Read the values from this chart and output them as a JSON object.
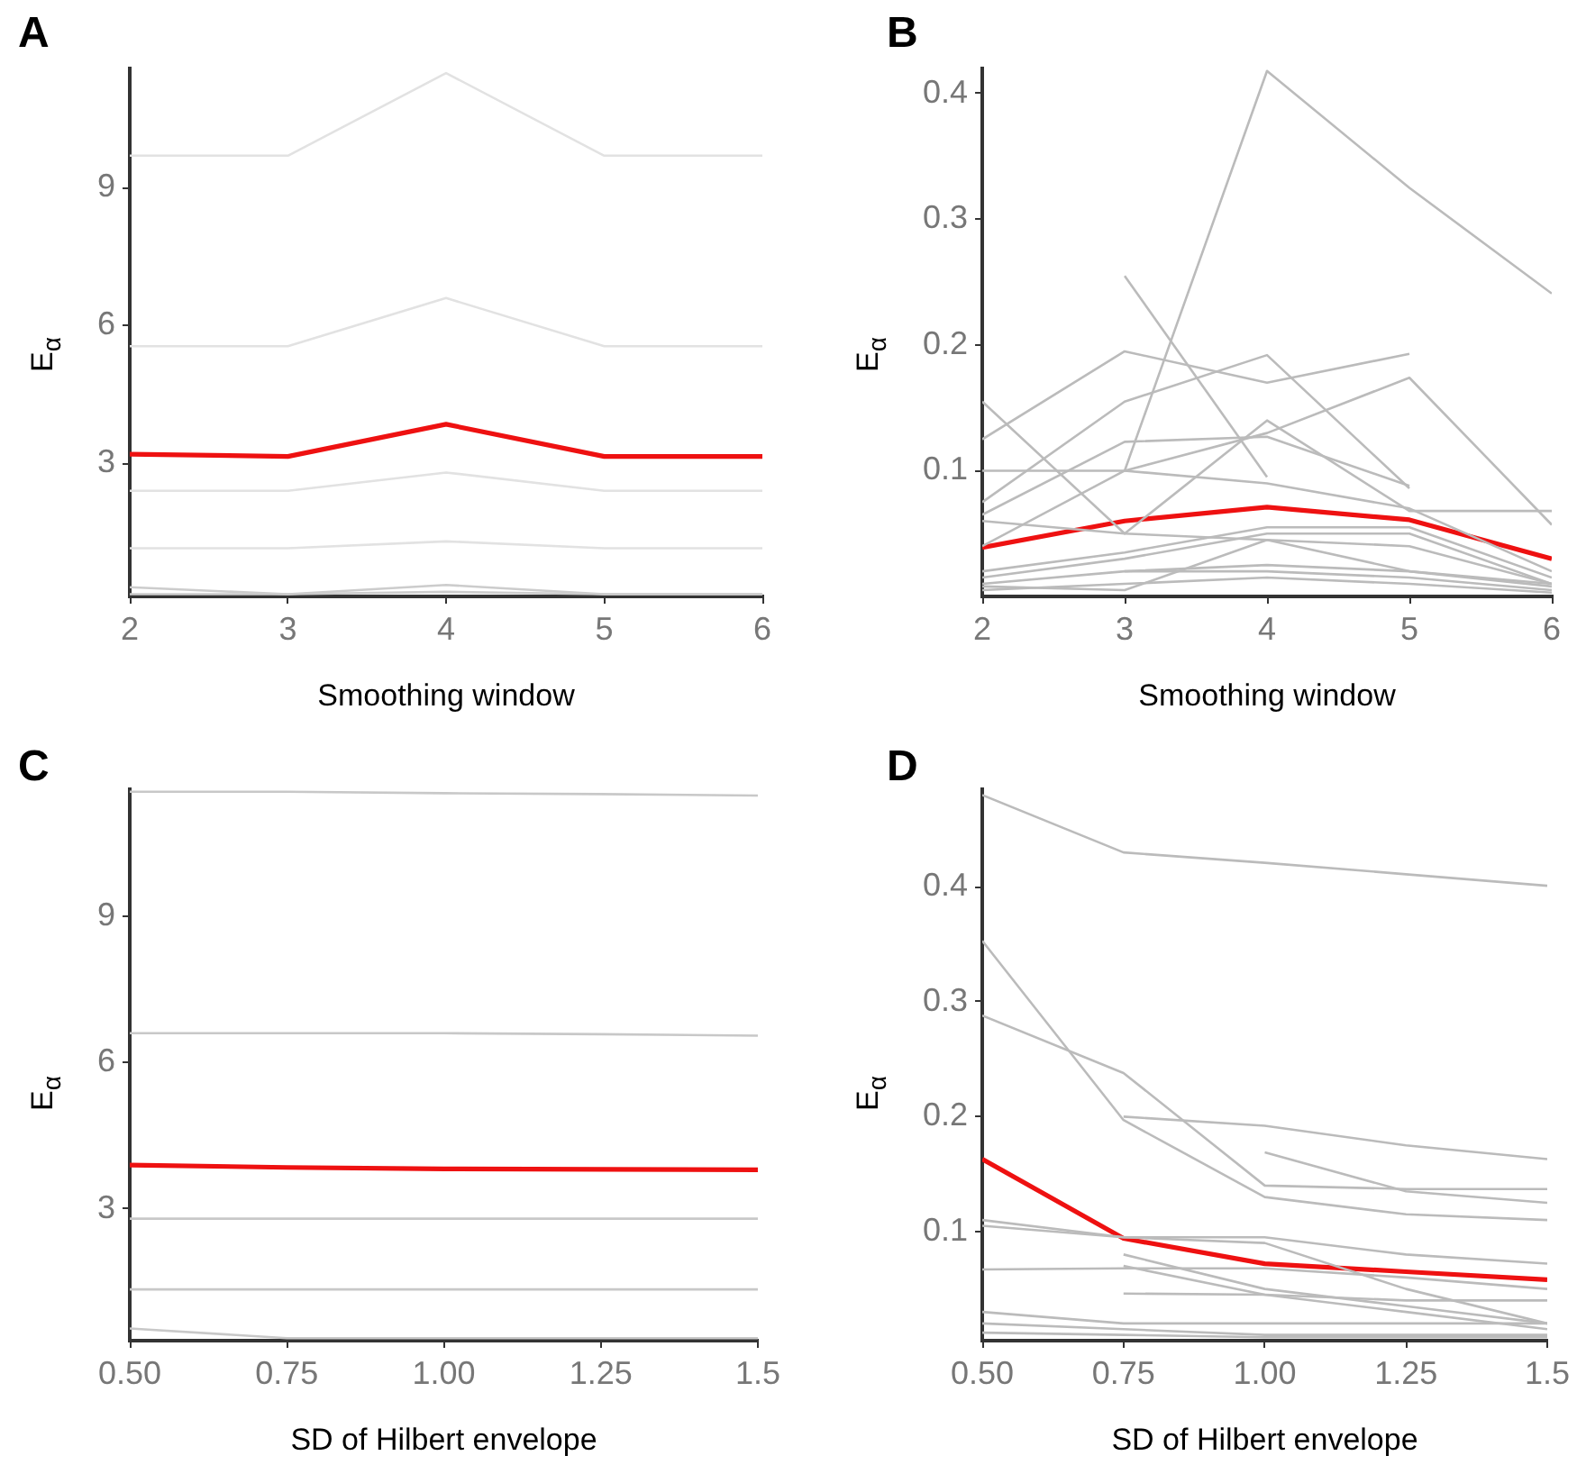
{
  "chart_data": [
    {
      "type": "line",
      "title": "A",
      "xlabel": "Smoothing window",
      "ylabel": "E$_{α}$",
      "x": [
        2,
        3,
        4,
        5,
        6
      ],
      "xlim": [
        2,
        6
      ],
      "xticks": [
        2,
        3,
        4,
        5,
        6
      ],
      "ylim": [
        0.1,
        11.6
      ],
      "yticks": [
        3,
        6,
        9
      ],
      "grid": false,
      "legend": false,
      "marker": "none",
      "series": [
        {
          "color": "#e2e2e2",
          "values": [
            9.7,
            9.7,
            11.5,
            9.7,
            9.7
          ]
        },
        {
          "color": "#e2e2e2",
          "values": [
            5.55,
            5.55,
            6.6,
            5.55,
            5.55
          ]
        },
        {
          "color": "#e2e2e2",
          "values": [
            2.4,
            2.4,
            2.8,
            2.4,
            2.4
          ]
        },
        {
          "color": "#e2e2e2",
          "values": [
            1.15,
            1.15,
            1.3,
            1.15,
            1.15
          ]
        },
        {
          "color": "#cccccc",
          "values": [
            0.3,
            0.15,
            0.35,
            0.15,
            0.15
          ]
        },
        {
          "color": "#cccccc",
          "values": [
            0.15,
            0.15,
            0.2,
            0.15,
            0.15
          ]
        },
        {
          "color": "#ee1111",
          "values": [
            3.2,
            3.15,
            3.85,
            3.15,
            3.15
          ]
        }
      ]
    },
    {
      "type": "line",
      "title": "B",
      "xlabel": "Smoothing window",
      "ylabel": "E$_{α}$",
      "x": [
        2,
        3,
        4,
        5,
        6
      ],
      "xlim": [
        2,
        6
      ],
      "xticks": [
        2,
        3,
        4,
        5,
        6
      ],
      "ylim": [
        0,
        0.42
      ],
      "yticks": [
        0.1,
        0.2,
        0.3,
        0.4
      ],
      "grid": false,
      "legend": false,
      "marker": "none",
      "series": [
        {
          "color": "#bbbbbb",
          "values": [
            0.125,
            0.195,
            0.17,
            0.193,
            null
          ]
        },
        {
          "color": "#bbbbbb",
          "values": [
            0.075,
            0.155,
            0.192,
            0.086,
            null
          ]
        },
        {
          "color": "#bbbbbb",
          "values": [
            0.04,
            0.1,
            0.13,
            0.174,
            0.057
          ]
        },
        {
          "color": "#bbbbbb",
          "values": [
            0.155,
            0.05,
            0.14,
            0.068,
            0.068
          ]
        },
        {
          "color": "#bbbbbb",
          "values": [
            0.1,
            0.1,
            0.09,
            0.07,
            0.02
          ]
        },
        {
          "color": "#bbbbbb",
          "values": [
            0.065,
            0.123,
            0.127,
            0.088,
            null
          ]
        },
        {
          "color": "#bbbbbb",
          "values": [
            null,
            0.1,
            0.418,
            0.325,
            0.241
          ]
        },
        {
          "color": "#bbbbbb",
          "values": [
            null,
            0.255,
            0.095,
            null,
            null
          ]
        },
        {
          "color": "#bbbbbb",
          "values": [
            0.06,
            0.05,
            0.045,
            0.04,
            0.01
          ]
        },
        {
          "color": "#bbbbbb",
          "values": [
            0.02,
            0.035,
            0.055,
            0.055,
            0.015
          ]
        },
        {
          "color": "#bbbbbb",
          "values": [
            0.015,
            0.03,
            0.05,
            0.05,
            0.01
          ]
        },
        {
          "color": "#bbbbbb",
          "values": [
            0.01,
            0.02,
            0.02,
            0.015,
            0.005
          ]
        },
        {
          "color": "#bbbbbb",
          "values": [
            0.005,
            0.01,
            0.015,
            0.01,
            0.003
          ]
        },
        {
          "color": "#bbbbbb",
          "values": [
            0.008,
            0.005,
            0.045,
            0.02,
            0.008
          ]
        },
        {
          "color": "#bbbbbb",
          "values": [
            null,
            0.02,
            0.025,
            0.02,
            0.01
          ]
        },
        {
          "color": "#ee1111",
          "values": [
            0.039,
            0.06,
            0.071,
            0.061,
            0.03
          ]
        }
      ]
    },
    {
      "type": "line",
      "title": "C",
      "xlabel": "SD of Hilbert envelope",
      "ylabel": "E$_{α}$",
      "x": [
        0.5,
        0.75,
        1,
        1.25,
        1.5
      ],
      "xlim": [
        0.5,
        1.5
      ],
      "xticks": [
        {
          "value": 0.5,
          "label": "0.50"
        },
        {
          "value": 0.75,
          "label": "0.75"
        },
        {
          "value": 1,
          "label": "1.00"
        },
        {
          "value": 1.25,
          "label": "1.25"
        },
        1.5
      ],
      "ylim": [
        0.3,
        11.6
      ],
      "yticks": [
        3,
        6,
        9
      ],
      "grid": false,
      "legend": false,
      "marker": "none",
      "series": [
        {
          "color": "#c8c8c8",
          "values": [
            11.55,
            11.55,
            11.52,
            11.5,
            11.47
          ]
        },
        {
          "color": "#c8c8c8",
          "values": [
            6.6,
            6.6,
            6.6,
            6.58,
            6.55
          ]
        },
        {
          "color": "#c8c8c8",
          "values": [
            2.8,
            2.8,
            2.8,
            2.8,
            2.8
          ]
        },
        {
          "color": "#c8c8c8",
          "values": [
            1.35,
            1.35,
            1.35,
            1.35,
            1.35
          ]
        },
        {
          "color": "#c8c8c8",
          "values": [
            0.55,
            0.35,
            0.35,
            0.35,
            0.35
          ]
        },
        {
          "color": "#ee1111",
          "values": [
            3.9,
            3.85,
            3.82,
            3.81,
            3.8
          ]
        }
      ]
    },
    {
      "type": "line",
      "title": "D",
      "xlabel": "SD of Hilbert envelope",
      "ylabel": "E$_{α}$",
      "x": [
        0.5,
        0.75,
        1,
        1.25,
        1.5
      ],
      "xlim": [
        0.5,
        1.5
      ],
      "xticks": [
        {
          "value": 0.5,
          "label": "0.50"
        },
        {
          "value": 0.75,
          "label": "0.75"
        },
        {
          "value": 1,
          "label": "1.00"
        },
        {
          "value": 1.25,
          "label": "1.25"
        },
        1.5
      ],
      "ylim": [
        0.005,
        0.485
      ],
      "yticks": [
        0.1,
        0.2,
        0.3,
        0.4
      ],
      "grid": false,
      "legend": false,
      "marker": "none",
      "series": [
        {
          "color": "#bbbbbb",
          "values": [
            0.48,
            0.43,
            0.421,
            0.411,
            0.401
          ]
        },
        {
          "color": "#bbbbbb",
          "values": [
            0.353,
            0.197,
            0.13,
            0.115,
            0.11
          ]
        },
        {
          "color": "#bbbbbb",
          "values": [
            0.288,
            0.238,
            0.14,
            0.137,
            0.137
          ]
        },
        {
          "color": "#bbbbbb",
          "values": [
            null,
            0.2,
            0.192,
            0.175,
            0.163
          ]
        },
        {
          "color": "#bbbbbb",
          "values": [
            null,
            null,
            0.169,
            0.135,
            0.125
          ]
        },
        {
          "color": "#bbbbbb",
          "values": [
            0.11,
            0.095,
            0.095,
            0.08,
            0.072
          ]
        },
        {
          "color": "#bbbbbb",
          "values": [
            0.105,
            0.095,
            0.09,
            0.05,
            0.02
          ]
        },
        {
          "color": "#bbbbbb",
          "values": [
            0.067,
            0.068,
            0.068,
            0.06,
            0.05
          ]
        },
        {
          "color": "#bbbbbb",
          "values": [
            null,
            0.08,
            0.05,
            0.035,
            0.02
          ]
        },
        {
          "color": "#bbbbbb",
          "values": [
            null,
            0.07,
            0.045,
            0.03,
            0.015
          ]
        },
        {
          "color": "#bbbbbb",
          "values": [
            null,
            0.046,
            0.045,
            0.04,
            0.04
          ]
        },
        {
          "color": "#bbbbbb",
          "values": [
            0.03,
            0.02,
            0.02,
            0.02,
            0.02
          ]
        },
        {
          "color": "#bbbbbb",
          "values": [
            0.02,
            0.015,
            0.01,
            0.01,
            0.01
          ]
        },
        {
          "color": "#bbbbbb",
          "values": [
            0.012,
            0.01,
            0.008,
            0.008,
            0.008
          ]
        },
        {
          "color": "#ee1111",
          "values": [
            0.163,
            0.094,
            0.072,
            0.065,
            0.058
          ]
        }
      ]
    }
  ]
}
